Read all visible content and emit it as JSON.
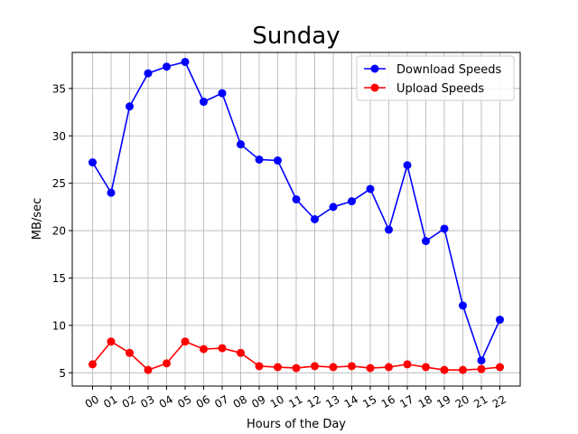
{
  "chart_data": {
    "type": "line",
    "title": "Sunday",
    "xlabel": "Hours of the Day",
    "ylabel": "MB/sec",
    "categories": [
      "00",
      "01",
      "02",
      "03",
      "04",
      "05",
      "06",
      "07",
      "08",
      "09",
      "10",
      "11",
      "12",
      "13",
      "14",
      "15",
      "16",
      "17",
      "18",
      "19",
      "20",
      "21",
      "22"
    ],
    "ylim": [
      3.6,
      38.8
    ],
    "yticks": [
      5,
      10,
      15,
      20,
      25,
      30,
      35
    ],
    "grid": true,
    "legend_position": "top-right",
    "series": [
      {
        "name": "Download Speeds",
        "color": "#0000ff",
        "values": [
          27.2,
          24.0,
          33.1,
          36.6,
          37.3,
          37.8,
          33.6,
          34.5,
          29.1,
          27.5,
          27.4,
          23.3,
          21.2,
          22.5,
          23.1,
          24.4,
          20.1,
          26.9,
          18.9,
          20.2,
          12.1,
          6.3,
          10.6
        ]
      },
      {
        "name": "Upload Speeds",
        "color": "#ff0000",
        "values": [
          5.9,
          8.3,
          7.1,
          5.3,
          6.0,
          8.3,
          7.5,
          7.6,
          7.1,
          5.7,
          5.6,
          5.5,
          5.7,
          5.6,
          5.7,
          5.5,
          5.6,
          5.9,
          5.6,
          5.3,
          5.3,
          5.4,
          5.6
        ]
      }
    ]
  }
}
